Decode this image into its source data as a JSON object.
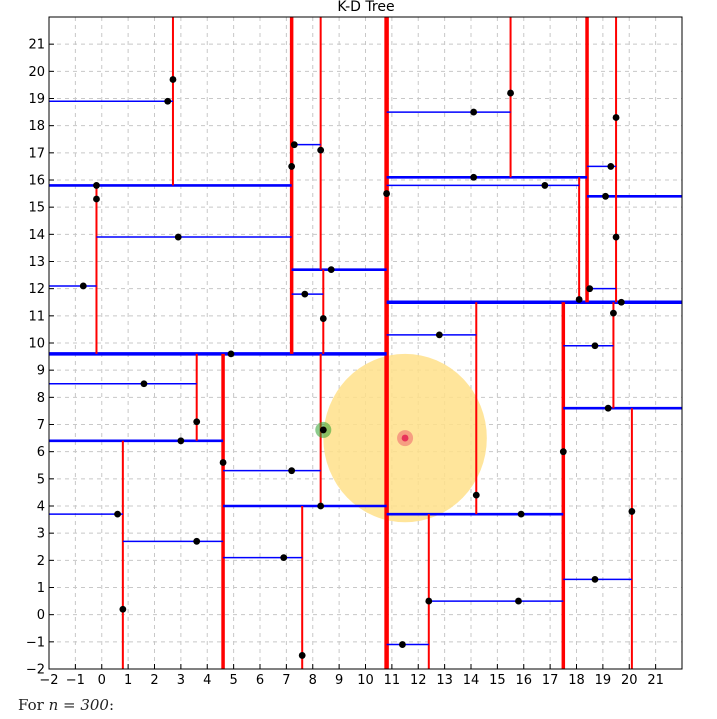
{
  "caption": {
    "prefix": "For",
    "math": "n = 300",
    "suffix": ":"
  },
  "chart_data": {
    "type": "scatter",
    "title": "K-D Tree",
    "xlim": [
      -2,
      22
    ],
    "ylim": [
      -2,
      22
    ],
    "x_ticks": [
      -2,
      -1,
      0,
      1,
      2,
      3,
      4,
      5,
      6,
      7,
      8,
      9,
      10,
      11,
      12,
      13,
      14,
      15,
      16,
      17,
      18,
      19,
      20,
      21
    ],
    "y_ticks": [
      -2,
      -1,
      0,
      1,
      2,
      3,
      4,
      5,
      6,
      7,
      8,
      9,
      10,
      11,
      12,
      13,
      14,
      15,
      16,
      17,
      18,
      19,
      20,
      21
    ],
    "grid": true,
    "colors": {
      "vertical_split": "#ff0000",
      "horizontal_split": "#0000ff",
      "point": "#000000",
      "query_point": "#e8345a",
      "nearest_point": "#2ca02c",
      "search_radius": "#ffe08a"
    },
    "points": [
      [
        10.8,
        15.5
      ],
      [
        -0.2,
        15.8
      ],
      [
        -0.2,
        15.3
      ],
      [
        2.7,
        19.7
      ],
      [
        2.5,
        18.9
      ],
      [
        -0.7,
        12.1
      ],
      [
        2.9,
        13.9
      ],
      [
        7.2,
        16.5
      ],
      [
        7.3,
        17.3
      ],
      [
        8.3,
        17.1
      ],
      [
        8.7,
        12.7
      ],
      [
        7.7,
        11.8
      ],
      [
        8.4,
        10.9
      ],
      [
        4.9,
        9.6
      ],
      [
        1.6,
        8.5
      ],
      [
        3.6,
        7.1
      ],
      [
        3.0,
        6.4
      ],
      [
        4.6,
        5.6
      ],
      [
        0.6,
        3.7
      ],
      [
        3.6,
        2.7
      ],
      [
        0.8,
        0.2
      ],
      [
        7.2,
        5.3
      ],
      [
        8.3,
        4.0
      ],
      [
        6.9,
        2.1
      ],
      [
        7.6,
        -1.5
      ],
      [
        15.5,
        19.2
      ],
      [
        14.1,
        18.5
      ],
      [
        19.5,
        18.3
      ],
      [
        14.1,
        16.1
      ],
      [
        16.8,
        15.8
      ],
      [
        19.3,
        16.5
      ],
      [
        19.1,
        15.4
      ],
      [
        19.5,
        13.9
      ],
      [
        18.5,
        12.0
      ],
      [
        18.1,
        11.6
      ],
      [
        19.7,
        11.5
      ],
      [
        19.4,
        11.1
      ],
      [
        12.8,
        10.3
      ],
      [
        18.7,
        9.9
      ],
      [
        19.2,
        7.6
      ],
      [
        17.5,
        6.0
      ],
      [
        14.2,
        4.4
      ],
      [
        15.9,
        3.7
      ],
      [
        20.1,
        3.8
      ],
      [
        18.7,
        1.3
      ],
      [
        12.4,
        0.5
      ],
      [
        15.8,
        0.5
      ],
      [
        11.4,
        -1.1
      ]
    ],
    "query_point": [
      11.5,
      6.5
    ],
    "nearest_point": [
      8.4,
      6.8
    ],
    "search_radius": 3.1,
    "splits": [
      {
        "orientation": "vertical",
        "at": 10.8,
        "from": -2,
        "to": 22,
        "depth": 0
      },
      {
        "orientation": "horizontal",
        "at": 9.6,
        "from": -2,
        "to": 10.8,
        "depth": 1
      },
      {
        "orientation": "horizontal",
        "at": 11.5,
        "from": 10.8,
        "to": 22,
        "depth": 1
      },
      {
        "orientation": "vertical",
        "at": 7.2,
        "from": 9.6,
        "to": 22,
        "depth": 2
      },
      {
        "orientation": "vertical",
        "at": 4.6,
        "from": -2,
        "to": 9.6,
        "depth": 2
      },
      {
        "orientation": "vertical",
        "at": 18.4,
        "from": 11.5,
        "to": 22,
        "depth": 2
      },
      {
        "orientation": "vertical",
        "at": 17.5,
        "from": -2,
        "to": 11.5,
        "depth": 2
      },
      {
        "orientation": "horizontal",
        "at": 15.8,
        "from": -2,
        "to": 7.2,
        "depth": 3
      },
      {
        "orientation": "horizontal",
        "at": 12.7,
        "from": 7.2,
        "to": 10.8,
        "depth": 3
      },
      {
        "orientation": "horizontal",
        "at": 6.4,
        "from": -2,
        "to": 4.6,
        "depth": 3
      },
      {
        "orientation": "horizontal",
        "at": 4.0,
        "from": 4.6,
        "to": 10.8,
        "depth": 3
      },
      {
        "orientation": "horizontal",
        "at": 16.1,
        "from": 10.8,
        "to": 18.4,
        "depth": 3
      },
      {
        "orientation": "horizontal",
        "at": 15.4,
        "from": 18.4,
        "to": 22,
        "depth": 3
      },
      {
        "orientation": "horizontal",
        "at": 3.7,
        "from": 10.8,
        "to": 17.5,
        "depth": 3
      },
      {
        "orientation": "horizontal",
        "at": 7.6,
        "from": 17.5,
        "to": 22,
        "depth": 3
      },
      {
        "orientation": "vertical",
        "at": -0.2,
        "from": 9.6,
        "to": 15.8,
        "depth": 4
      },
      {
        "orientation": "vertical",
        "at": 2.7,
        "from": 15.8,
        "to": 22,
        "depth": 4
      },
      {
        "orientation": "vertical",
        "at": 8.3,
        "from": 12.7,
        "to": 22,
        "depth": 4
      },
      {
        "orientation": "vertical",
        "at": 8.4,
        "from": 9.6,
        "to": 12.7,
        "depth": 4
      },
      {
        "orientation": "vertical",
        "at": 3.6,
        "from": 6.4,
        "to": 9.6,
        "depth": 4
      },
      {
        "orientation": "vertical",
        "at": 0.8,
        "from": -2,
        "to": 6.4,
        "depth": 4
      },
      {
        "orientation": "vertical",
        "at": 8.3,
        "from": 4.0,
        "to": 9.6,
        "depth": 4
      },
      {
        "orientation": "vertical",
        "at": 7.6,
        "from": -2,
        "to": 4.0,
        "depth": 4
      },
      {
        "orientation": "vertical",
        "at": 15.5,
        "from": 16.1,
        "to": 22,
        "depth": 4
      },
      {
        "orientation": "vertical",
        "at": 18.1,
        "from": 11.5,
        "to": 16.1,
        "depth": 4
      },
      {
        "orientation": "vertical",
        "at": 19.5,
        "from": 15.4,
        "to": 22,
        "depth": 4
      },
      {
        "orientation": "vertical",
        "at": 19.5,
        "from": 11.5,
        "to": 15.4,
        "depth": 4
      },
      {
        "orientation": "vertical",
        "at": 14.2,
        "from": 3.7,
        "to": 11.5,
        "depth": 4
      },
      {
        "orientation": "vertical",
        "at": 12.4,
        "from": -2,
        "to": 3.7,
        "depth": 4
      },
      {
        "orientation": "vertical",
        "at": 19.4,
        "from": 7.6,
        "to": 11.5,
        "depth": 4
      },
      {
        "orientation": "vertical",
        "at": 20.1,
        "from": -2,
        "to": 7.6,
        "depth": 4
      },
      {
        "orientation": "horizontal",
        "at": 18.9,
        "from": -2,
        "to": 2.7,
        "depth": 5
      },
      {
        "orientation": "horizontal",
        "at": 13.9,
        "from": -0.2,
        "to": 7.2,
        "depth": 5
      },
      {
        "orientation": "horizontal",
        "at": 12.1,
        "from": -2,
        "to": -0.2,
        "depth": 5
      },
      {
        "orientation": "horizontal",
        "at": 17.3,
        "from": 7.2,
        "to": 8.3,
        "depth": 5
      },
      {
        "orientation": "horizontal",
        "at": 11.8,
        "from": 7.2,
        "to": 8.4,
        "depth": 5
      },
      {
        "orientation": "horizontal",
        "at": 8.5,
        "from": -2,
        "to": 3.6,
        "depth": 5
      },
      {
        "orientation": "horizontal",
        "at": 3.7,
        "from": -2,
        "to": 0.8,
        "depth": 5
      },
      {
        "orientation": "horizontal",
        "at": 2.7,
        "from": 0.8,
        "to": 4.6,
        "depth": 5
      },
      {
        "orientation": "horizontal",
        "at": 5.3,
        "from": 4.6,
        "to": 8.3,
        "depth": 5
      },
      {
        "orientation": "horizontal",
        "at": 2.1,
        "from": 4.6,
        "to": 7.6,
        "depth": 5
      },
      {
        "orientation": "horizontal",
        "at": 18.5,
        "from": 10.8,
        "to": 15.5,
        "depth": 5
      },
      {
        "orientation": "horizontal",
        "at": 15.8,
        "from": 10.8,
        "to": 18.1,
        "depth": 5
      },
      {
        "orientation": "horizontal",
        "at": 16.5,
        "from": 18.4,
        "to": 19.5,
        "depth": 5
      },
      {
        "orientation": "horizontal",
        "at": 12.0,
        "from": 18.4,
        "to": 19.5,
        "depth": 5
      },
      {
        "orientation": "horizontal",
        "at": 10.3,
        "from": 10.8,
        "to": 14.2,
        "depth": 5
      },
      {
        "orientation": "horizontal",
        "at": 0.5,
        "from": 12.4,
        "to": 17.5,
        "depth": 5
      },
      {
        "orientation": "horizontal",
        "at": -1.1,
        "from": 10.8,
        "to": 12.4,
        "depth": 5
      },
      {
        "orientation": "horizontal",
        "at": 9.9,
        "from": 17.5,
        "to": 19.4,
        "depth": 5
      },
      {
        "orientation": "horizontal",
        "at": 1.3,
        "from": 17.5,
        "to": 20.1,
        "depth": 5
      }
    ]
  }
}
